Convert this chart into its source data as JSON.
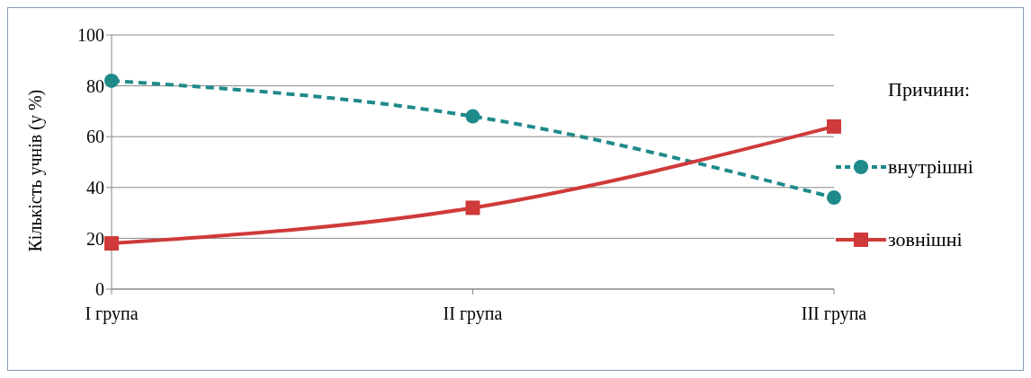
{
  "chart_data": {
    "type": "line",
    "ylabel": "Кількість учнів (у %)",
    "legend_title": "Причини:",
    "categories": [
      "І група",
      "ІІ група",
      "ІІІ група"
    ],
    "series": [
      {
        "name": "внутрішні",
        "color": "#1f8a8a",
        "values": [
          82,
          68,
          36
        ],
        "marker": "circle",
        "line_style": "dashed"
      },
      {
        "name": "зовнішні",
        "color": "#d03a3a",
        "values": [
          18,
          32,
          64
        ],
        "marker": "square",
        "line_style": "solid"
      }
    ],
    "ylim": [
      0,
      100
    ],
    "yticks": [
      0,
      20,
      40,
      60,
      80,
      100
    ],
    "grid": "y",
    "legend": "right"
  }
}
